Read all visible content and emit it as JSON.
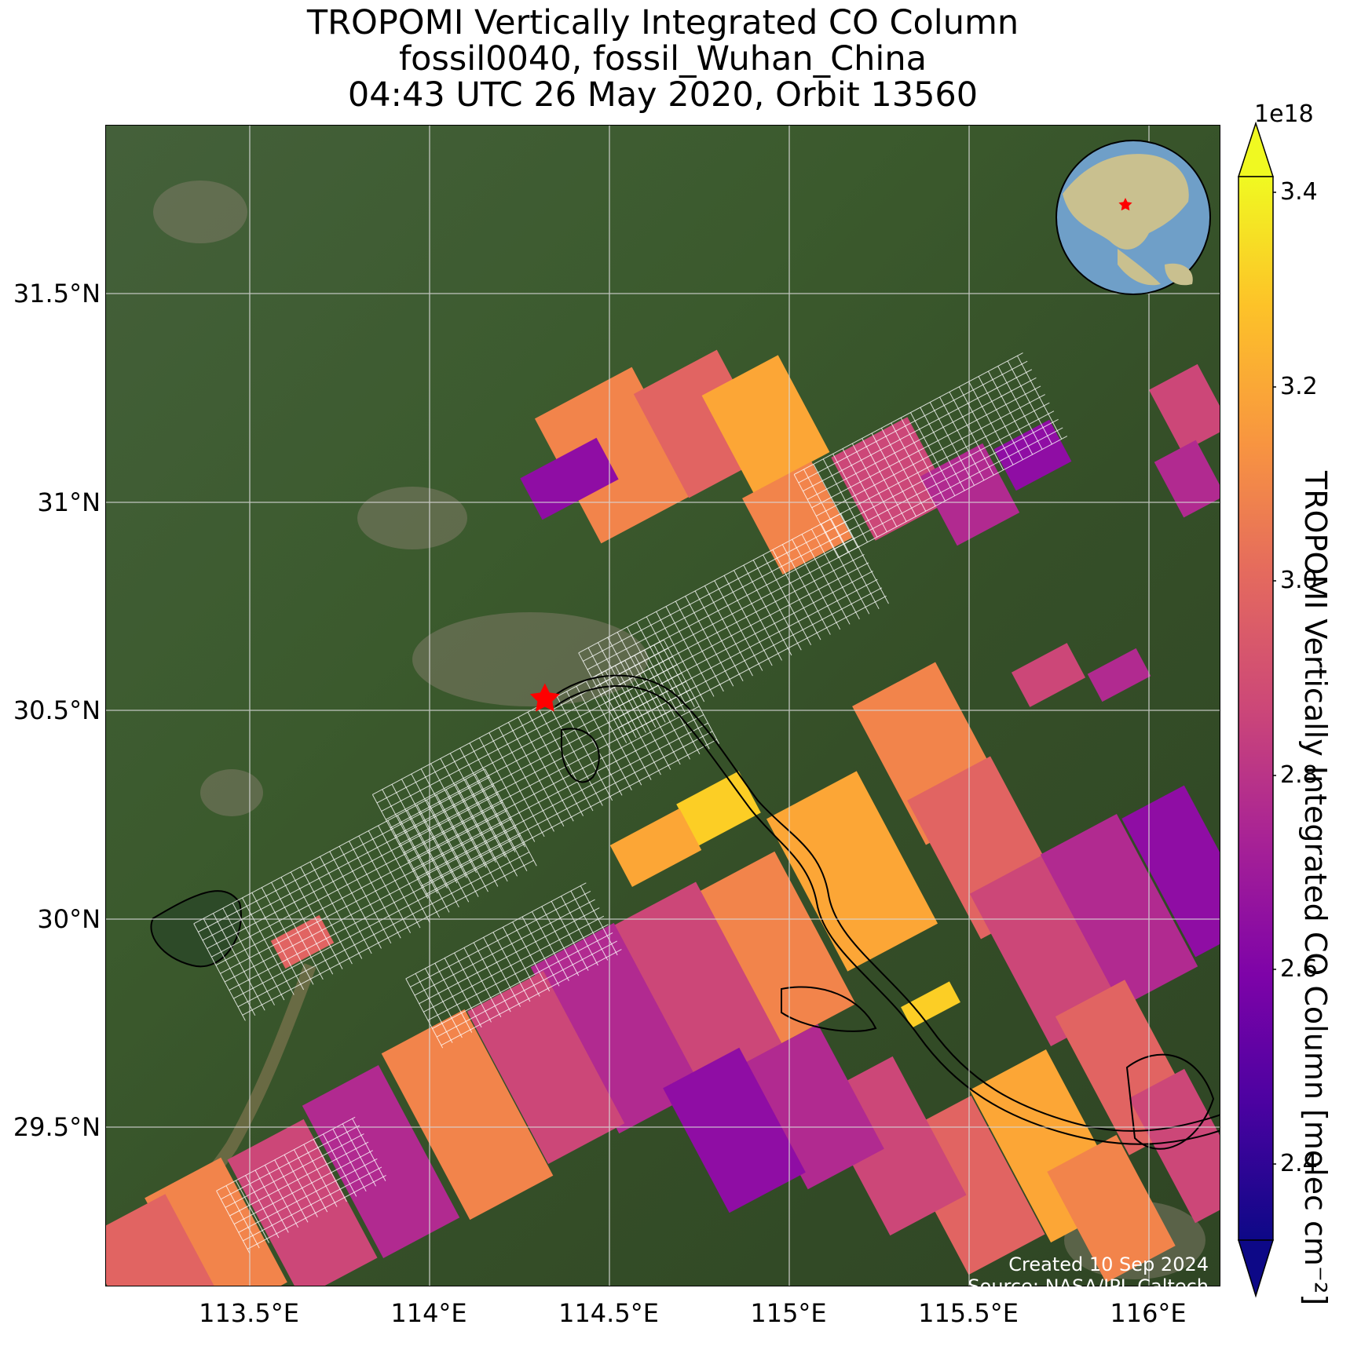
{
  "title": {
    "line1": "TROPOMI Vertically Integrated CO Column",
    "line2": "fossil0040, fossil_Wuhan_China",
    "line3": "04:43 UTC 26 May 2020, Orbit 13560"
  },
  "axes": {
    "lat_ticks": [
      "31.5°N",
      "31°N",
      "30.5°N",
      "30°N",
      "29.5°N"
    ],
    "lon_ticks": [
      "113.5°E",
      "114°E",
      "114.5°E",
      "115°E",
      "115.5°E",
      "116°E"
    ],
    "lat_range": [
      29.05,
      32.15
    ],
    "lon_range": [
      113.1,
      116.2
    ]
  },
  "colorbar": {
    "scale_label": "1e18",
    "ticks": [
      "3.4",
      "3.2",
      "3.0",
      "2.8",
      "2.6",
      "2.4"
    ],
    "label": "TROPOMI Vertically Integrated CO Column [molec cm⁻²]",
    "colormap": "plasma",
    "range": [
      2.3,
      3.45
    ],
    "extend": "both"
  },
  "site": {
    "marker_color": "#ff0000",
    "marker_icon": "star-icon",
    "lat": 30.62,
    "lon": 114.32
  },
  "credits": {
    "created": "Created 10 Sep 2024",
    "source": "Source: NASA/JPL-Caltech"
  },
  "colors": {
    "basemap": "#3a5a2c",
    "grid": "#d8d8d8",
    "sounding_grid": "#ffffff",
    "coastline": "#000000"
  }
}
